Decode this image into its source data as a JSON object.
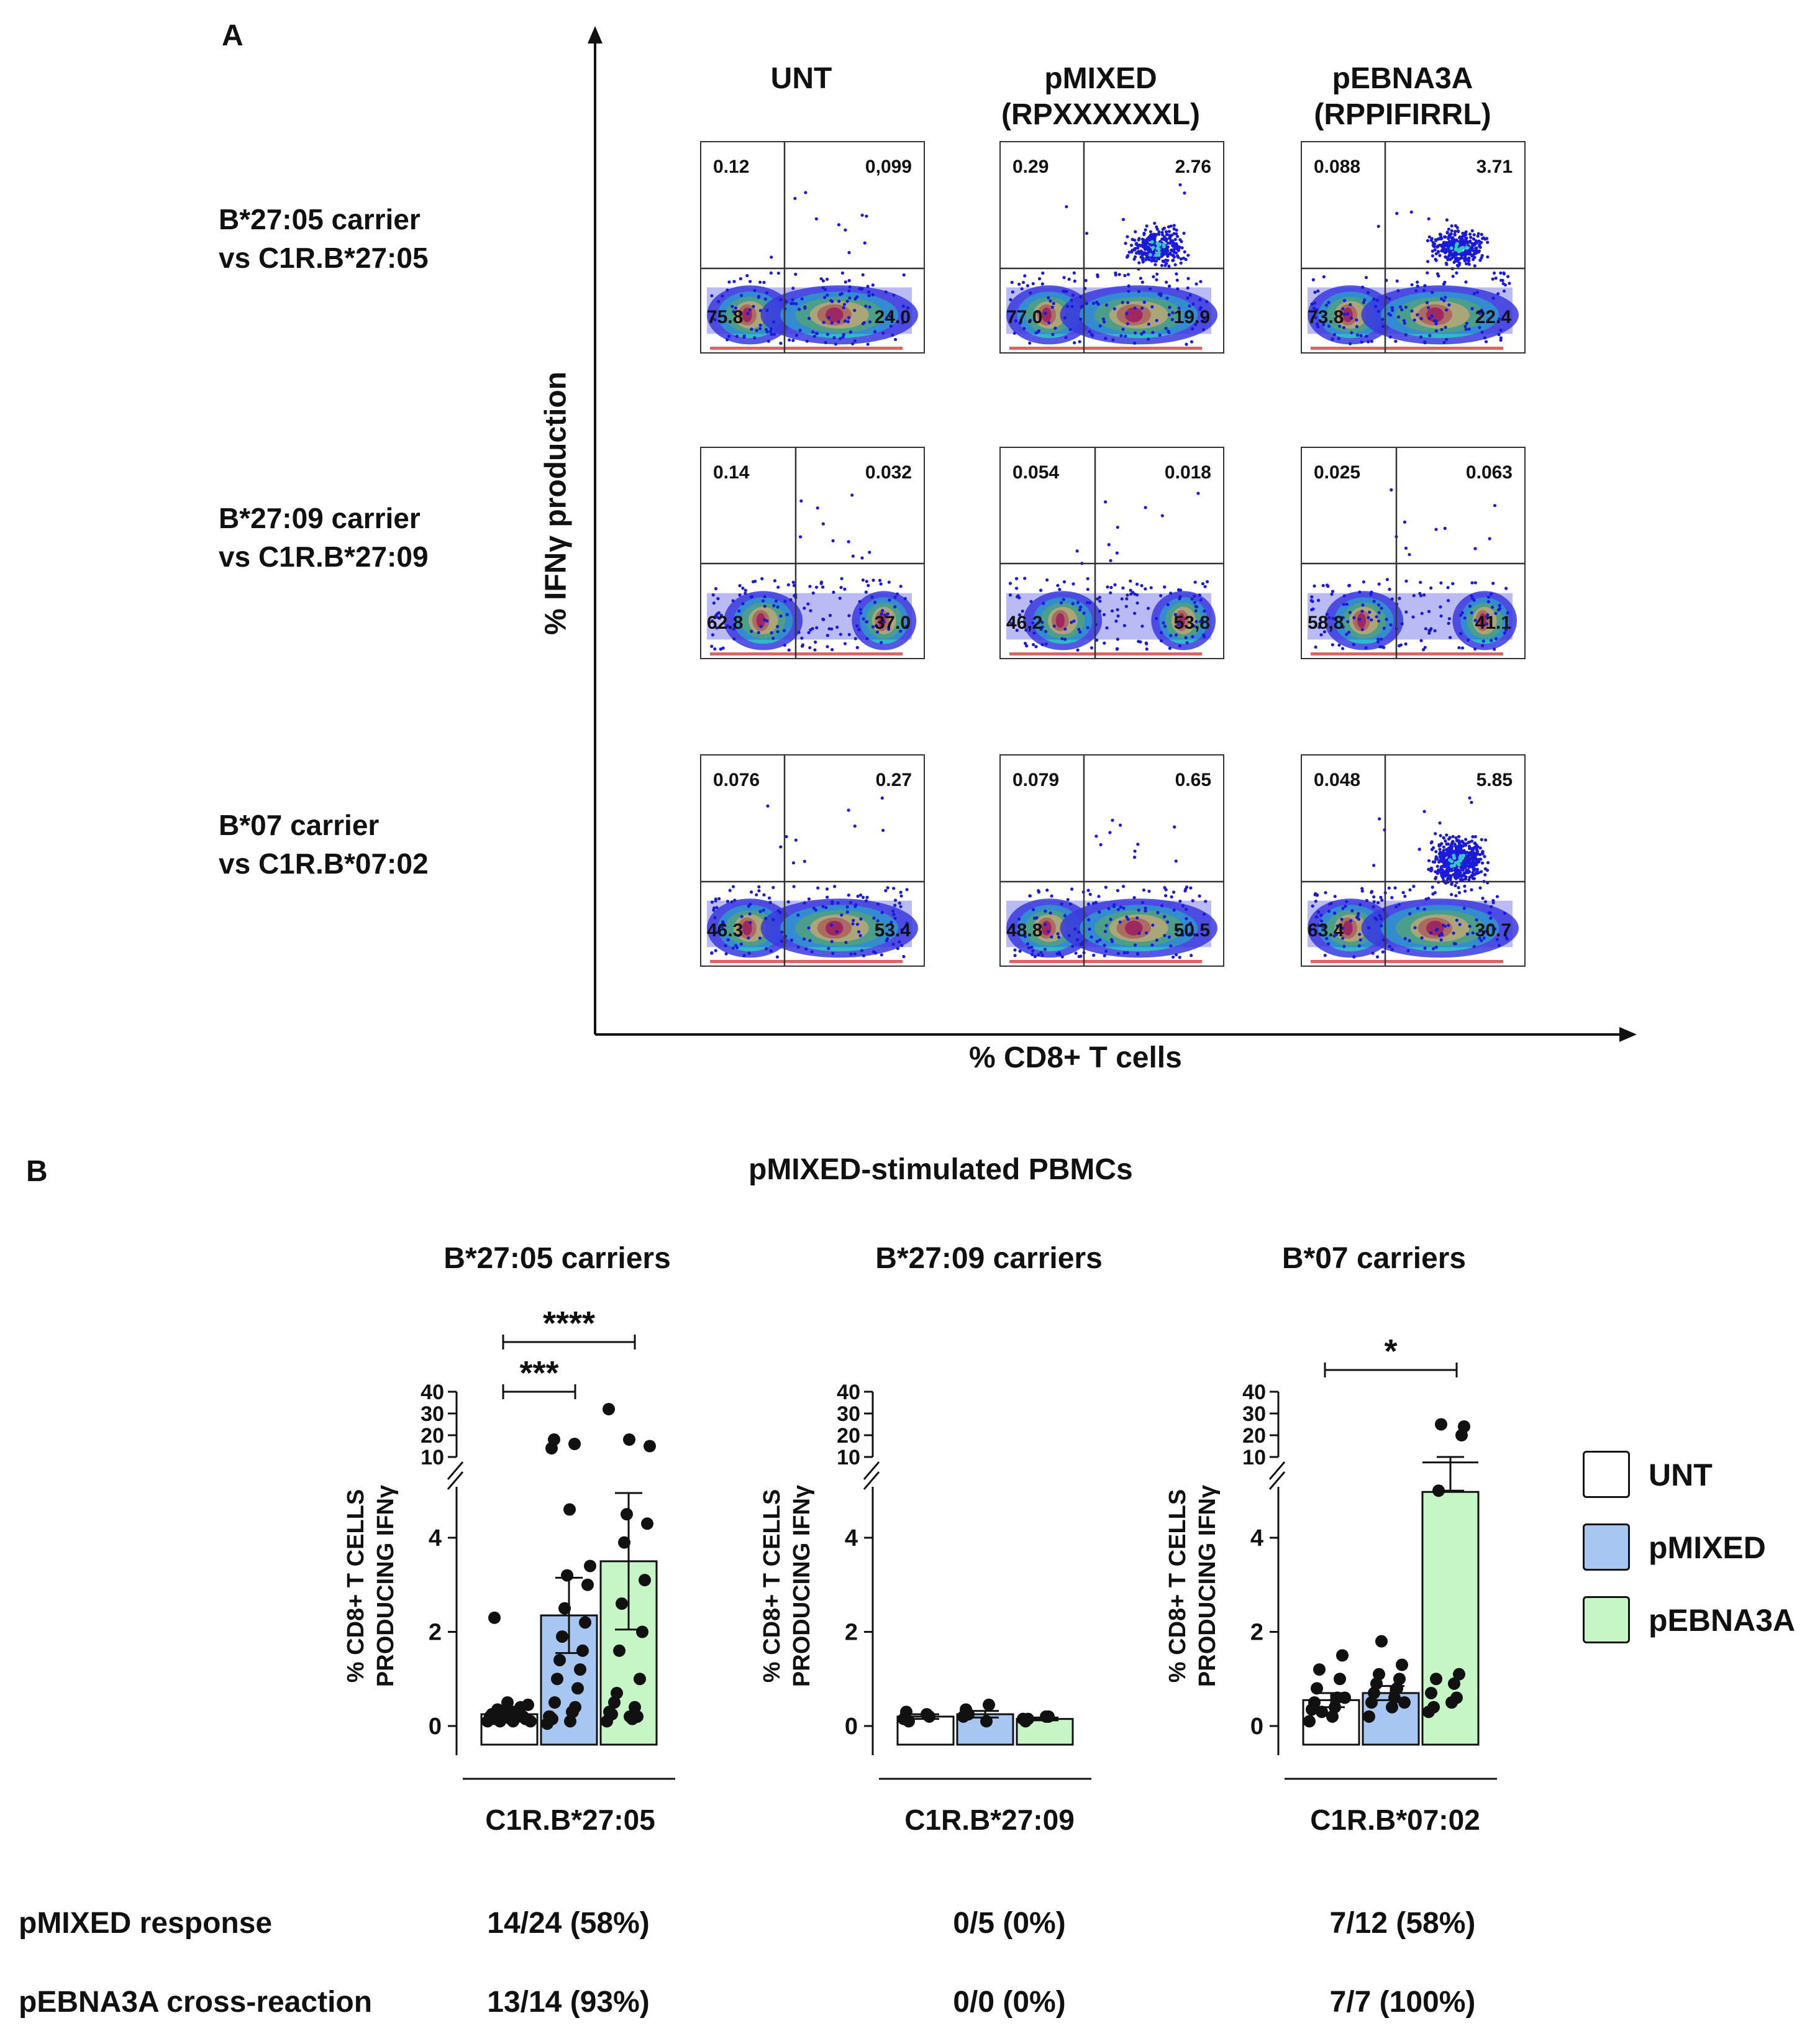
{
  "panel_a": {
    "letter": "A",
    "columns": [
      "UNT",
      "pMIXED\n(RPXXXXXXL)",
      "pEBNA3A\n(RPPIFIRRL)"
    ],
    "rows": [
      "B*27:05 carrier\nvs C1R.B*27:05",
      "B*27:09 carrier\nvs C1R.B*27:09",
      "B*07 carrier\nvs C1R.B*07:02"
    ],
    "y_axis_title": "% IFNγ production",
    "x_axis_title": "% CD8+ T cells"
  },
  "panel_b": {
    "letter": "B",
    "title": "pMIXED-stimulated PBMCs",
    "groups": [
      "B*27:05 carriers",
      "B*27:09 carriers",
      "B*07 carriers"
    ],
    "y_axis_label_line1": "% CD8+ T CELLS",
    "y_axis_label_line2": "PRODUCING IFNγ",
    "legend": [
      {
        "label": "UNT",
        "color": "#ffffff"
      },
      {
        "label": "pMIXED",
        "color": "#a7c7f2"
      },
      {
        "label": "pEBNA3A",
        "color": "#c6f5c6"
      }
    ],
    "row_labels": [
      "pMIXED response",
      "pEBNA3A cross-reaction"
    ],
    "stats": {
      "pmixed_response": [
        "14/24 (58%)",
        "0/5 (0%)",
        "7/12 (58%)"
      ],
      "pebna3a_cross": [
        "13/14 (93%)",
        "0/0 (0%)",
        "7/7 (100%)"
      ]
    }
  },
  "chart_data": [
    {
      "type": "scatter",
      "title": "Flow cytometry quadrant plots (IFNγ vs CD8)",
      "xlabel": "% CD8+ T cells",
      "ylabel": "% IFNγ production",
      "plots": [
        {
          "row": "B*27:05 carrier vs C1R.B*27:05",
          "col": "UNT",
          "quadrants": {
            "ul": "0.12",
            "ur": "0,099",
            "ll": "75.8",
            "lr": "24.0"
          },
          "upper_cloud": 0
        },
        {
          "row": "B*27:05 carrier vs C1R.B*27:05",
          "col": "pMIXED (RPXXXXXXL)",
          "quadrants": {
            "ul": "0.29",
            "ur": "2.76",
            "ll": "77.0",
            "lr": "19.9"
          },
          "upper_cloud": 1
        },
        {
          "row": "B*27:05 carrier vs C1R.B*27:05",
          "col": "pEBNA3A (RPPIFIRRL)",
          "quadrants": {
            "ul": "0.088",
            "ur": "3.71",
            "ll": "73.8",
            "lr": "22.4"
          },
          "upper_cloud": 1
        },
        {
          "row": "B*27:09 carrier vs C1R.B*27:09",
          "col": "UNT",
          "quadrants": {
            "ul": "0.14",
            "ur": "0.032",
            "ll": "62.8",
            "lr": "37.0"
          },
          "upper_cloud": 0
        },
        {
          "row": "B*27:09 carrier vs C1R.B*27:09",
          "col": "pMIXED (RPXXXXXXL)",
          "quadrants": {
            "ul": "0.054",
            "ur": "0.018",
            "ll": "46,2",
            "lr": "53,8"
          },
          "upper_cloud": 0
        },
        {
          "row": "B*27:09 carrier vs C1R.B*27:09",
          "col": "pEBNA3A (RPPIFIRRL)",
          "quadrants": {
            "ul": "0.025",
            "ur": "0.063",
            "ll": "58,8",
            "lr": "41.1"
          },
          "upper_cloud": 0
        },
        {
          "row": "B*07 carrier vs C1R.B*07:02",
          "col": "UNT",
          "quadrants": {
            "ul": "0.076",
            "ur": "0.27",
            "ll": "46.3",
            "lr": "53.4"
          },
          "upper_cloud": 0
        },
        {
          "row": "B*07 carrier vs C1R.B*07:02",
          "col": "pMIXED (RPXXXXXXL)",
          "quadrants": {
            "ul": "0.079",
            "ur": "0.65",
            "ll": "48.8",
            "lr": "50.5"
          },
          "upper_cloud": 0
        },
        {
          "row": "B*07 carrier vs C1R.B*07:02",
          "col": "pEBNA3A (RPPIFIRRL)",
          "quadrants": {
            "ul": "0.048",
            "ur": "5.85",
            "ll": "63.4",
            "lr": "30.7"
          },
          "upper_cloud": 2
        }
      ]
    },
    {
      "type": "bar",
      "title": "B*27:05 carriers",
      "xlabel": "C1R.B*27:05",
      "ylabel": "% CD8+ T CELLS PRODUCING IFNγ",
      "categories": [
        "UNT",
        "pMIXED",
        "pEBNA3A"
      ],
      "values": [
        0.25,
        2.35,
        3.5
      ],
      "sem": [
        0.1,
        0.8,
        1.45
      ],
      "ylim_lower": [
        0,
        5
      ],
      "ylim_upper": [
        10,
        40
      ],
      "yticks_lower": [
        "0",
        "2",
        "4"
      ],
      "yticks_upper": [
        "10",
        "20",
        "30",
        "40"
      ],
      "points": [
        [
          0.1,
          0.15,
          0.2,
          0.1,
          0.25,
          0.3,
          0.15,
          0.2,
          0.35,
          0.4,
          0.1,
          0.2,
          0.25,
          0.15,
          0.3,
          0.45,
          0.5,
          0.1,
          0.2,
          0.15,
          0.3,
          0.25,
          0.2,
          2.3
        ],
        [
          0.05,
          0.1,
          0.2,
          0.3,
          0.15,
          0.4,
          0.5,
          0.8,
          1.0,
          1.2,
          1.4,
          1.6,
          1.9,
          2.2,
          2.5,
          3.0,
          3.2,
          3.4,
          4.6,
          0.2,
          0.3,
          14,
          16,
          18
        ],
        [
          0.1,
          0.2,
          0.3,
          0.15,
          0.25,
          0.4,
          0.5,
          0.2,
          0.7,
          1.0,
          1.6,
          2.0,
          2.6,
          3.1,
          3.9,
          4.3,
          4.5,
          15,
          18,
          32
        ]
      ],
      "significance": [
        {
          "from": "UNT",
          "to": "pMIXED",
          "label": "***"
        },
        {
          "from": "UNT",
          "to": "pEBNA3A",
          "label": "****"
        }
      ]
    },
    {
      "type": "bar",
      "title": "B*27:09 carriers",
      "xlabel": "C1R.B*27:09",
      "ylabel": "% CD8+ T CELLS PRODUCING IFNγ",
      "categories": [
        "UNT",
        "pMIXED",
        "pEBNA3A"
      ],
      "values": [
        0.2,
        0.25,
        0.15
      ],
      "sem": [
        0.05,
        0.07,
        0.03
      ],
      "ylim_lower": [
        0,
        5
      ],
      "ylim_upper": [
        10,
        40
      ],
      "yticks_lower": [
        "0",
        "2",
        "4"
      ],
      "yticks_upper": [
        "10",
        "20",
        "30",
        "40"
      ],
      "points": [
        [
          0.15,
          0.25,
          0.3,
          0.2,
          0.1
        ],
        [
          0.2,
          0.1,
          0.35,
          0.45,
          0.25
        ],
        [
          0.15,
          0.2,
          0.1,
          0.2,
          0.15
        ]
      ],
      "significance": []
    },
    {
      "type": "bar",
      "title": "B*07 carriers",
      "xlabel": "C1R.B*07:02",
      "ylabel": "% CD8+ T CELLS PRODUCING IFNγ",
      "categories": [
        "UNT",
        "pMIXED",
        "pEBNA3A"
      ],
      "values": [
        0.55,
        0.7,
        7.5
      ],
      "sem": [
        0.15,
        0.15,
        2.5
      ],
      "ylim_lower": [
        0,
        5
      ],
      "ylim_upper": [
        10,
        40
      ],
      "yticks_lower": [
        "0",
        "2",
        "4"
      ],
      "yticks_upper": [
        "10",
        "20",
        "30",
        "40"
      ],
      "points": [
        [
          0.1,
          0.2,
          0.35,
          0.4,
          0.5,
          0.6,
          0.8,
          1.0,
          1.2,
          1.5,
          0.3,
          0.6
        ],
        [
          0.2,
          0.4,
          0.5,
          0.6,
          0.7,
          0.8,
          0.9,
          1.0,
          1.1,
          1.3,
          1.8,
          0.5
        ],
        [
          0.3,
          0.5,
          0.7,
          0.9,
          0.4,
          0.6,
          1.0,
          1.1,
          5,
          20,
          25,
          24
        ]
      ],
      "significance": [
        {
          "from": "UNT",
          "to": "pEBNA3A",
          "label": "*"
        }
      ]
    }
  ]
}
